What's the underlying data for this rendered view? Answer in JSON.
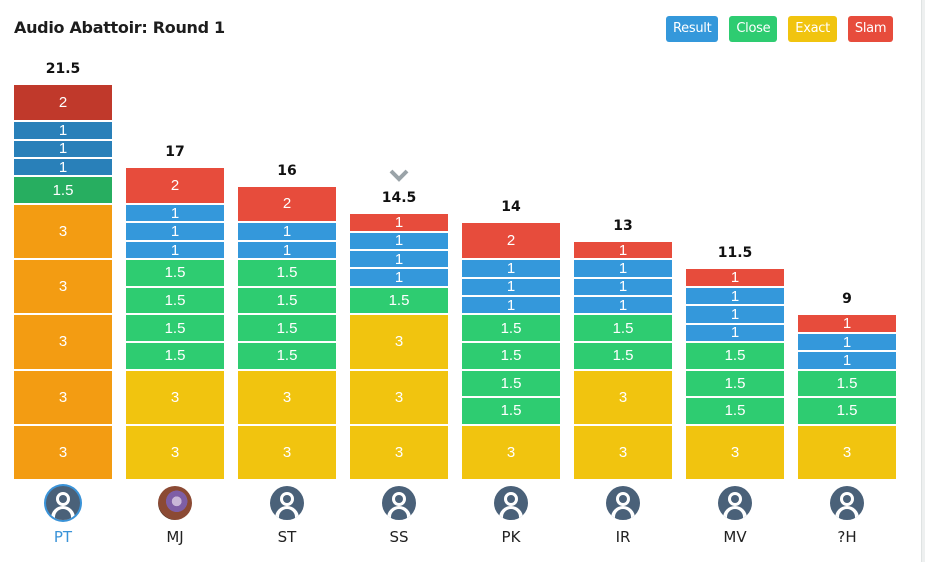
{
  "title": "Audio Abattoir: Round 1",
  "legend": [
    {
      "label": "Result",
      "color": "#3498db"
    },
    {
      "label": "Close",
      "color": "#2ecc71"
    },
    {
      "label": "Exact",
      "color": "#f1c40f"
    },
    {
      "label": "Slam",
      "color": "#e74c3c"
    }
  ],
  "chart_data": {
    "type": "bar",
    "stacked": true,
    "title": "Audio Abattoir: Round 1",
    "categories": [
      "PT",
      "MJ",
      "ST",
      "SS",
      "PK",
      "IR",
      "MV",
      "?H"
    ],
    "selected": "PT",
    "marker_above": "SS",
    "totals": [
      21.5,
      17,
      16,
      14.5,
      14,
      13,
      11.5,
      9
    ],
    "stacks": [
      [
        {
          "type": "Exact",
          "value": 3
        },
        {
          "type": "Exact",
          "value": 3
        },
        {
          "type": "Exact",
          "value": 3
        },
        {
          "type": "Exact",
          "value": 3
        },
        {
          "type": "Exact",
          "value": 3
        },
        {
          "type": "Close",
          "value": 1.5
        },
        {
          "type": "Result",
          "value": 1
        },
        {
          "type": "Result",
          "value": 1
        },
        {
          "type": "Result",
          "value": 1
        },
        {
          "type": "Slam",
          "value": 2
        }
      ],
      [
        {
          "type": "Exact",
          "value": 3
        },
        {
          "type": "Exact",
          "value": 3
        },
        {
          "type": "Close",
          "value": 1.5
        },
        {
          "type": "Close",
          "value": 1.5
        },
        {
          "type": "Close",
          "value": 1.5
        },
        {
          "type": "Close",
          "value": 1.5
        },
        {
          "type": "Result",
          "value": 1
        },
        {
          "type": "Result",
          "value": 1
        },
        {
          "type": "Result",
          "value": 1
        },
        {
          "type": "Slam",
          "value": 2
        }
      ],
      [
        {
          "type": "Exact",
          "value": 3
        },
        {
          "type": "Exact",
          "value": 3
        },
        {
          "type": "Close",
          "value": 1.5
        },
        {
          "type": "Close",
          "value": 1.5
        },
        {
          "type": "Close",
          "value": 1.5
        },
        {
          "type": "Close",
          "value": 1.5
        },
        {
          "type": "Result",
          "value": 1
        },
        {
          "type": "Result",
          "value": 1
        },
        {
          "type": "Slam",
          "value": 2
        }
      ],
      [
        {
          "type": "Exact",
          "value": 3
        },
        {
          "type": "Exact",
          "value": 3
        },
        {
          "type": "Exact",
          "value": 3
        },
        {
          "type": "Close",
          "value": 1.5
        },
        {
          "type": "Result",
          "value": 1
        },
        {
          "type": "Result",
          "value": 1
        },
        {
          "type": "Result",
          "value": 1
        },
        {
          "type": "Slam",
          "value": 1
        }
      ],
      [
        {
          "type": "Exact",
          "value": 3
        },
        {
          "type": "Close",
          "value": 1.5
        },
        {
          "type": "Close",
          "value": 1.5
        },
        {
          "type": "Close",
          "value": 1.5
        },
        {
          "type": "Close",
          "value": 1.5
        },
        {
          "type": "Result",
          "value": 1
        },
        {
          "type": "Result",
          "value": 1
        },
        {
          "type": "Result",
          "value": 1
        },
        {
          "type": "Slam",
          "value": 2
        }
      ],
      [
        {
          "type": "Exact",
          "value": 3
        },
        {
          "type": "Exact",
          "value": 3
        },
        {
          "type": "Close",
          "value": 1.5
        },
        {
          "type": "Close",
          "value": 1.5
        },
        {
          "type": "Result",
          "value": 1
        },
        {
          "type": "Result",
          "value": 1
        },
        {
          "type": "Result",
          "value": 1
        },
        {
          "type": "Slam",
          "value": 1
        }
      ],
      [
        {
          "type": "Exact",
          "value": 3
        },
        {
          "type": "Close",
          "value": 1.5
        },
        {
          "type": "Close",
          "value": 1.5
        },
        {
          "type": "Close",
          "value": 1.5
        },
        {
          "type": "Result",
          "value": 1
        },
        {
          "type": "Result",
          "value": 1
        },
        {
          "type": "Result",
          "value": 1
        },
        {
          "type": "Slam",
          "value": 1
        }
      ],
      [
        {
          "type": "Exact",
          "value": 3
        },
        {
          "type": "Close",
          "value": 1.5
        },
        {
          "type": "Close",
          "value": 1.5
        },
        {
          "type": "Result",
          "value": 1
        },
        {
          "type": "Result",
          "value": 1
        },
        {
          "type": "Slam",
          "value": 1
        }
      ]
    ],
    "colors": {
      "Result": "#3498db",
      "Close": "#2ecc71",
      "Exact": "#f1c40f",
      "Slam": "#e74c3c",
      "selected_Result": "#2980b9",
      "selected_Close": "#27ae60",
      "selected_Exact": "#f39c12",
      "selected_Slam": "#c0392b"
    }
  },
  "players": [
    {
      "initials": "PT",
      "avatar": "default-avatar-icon",
      "selected": true
    },
    {
      "initials": "MJ",
      "avatar": "photo-avatar",
      "selected": false
    },
    {
      "initials": "ST",
      "avatar": "default-avatar-icon",
      "selected": false
    },
    {
      "initials": "SS",
      "avatar": "default-avatar-icon",
      "selected": false
    },
    {
      "initials": "PK",
      "avatar": "default-avatar-icon",
      "selected": false
    },
    {
      "initials": "IR",
      "avatar": "default-avatar-icon",
      "selected": false
    },
    {
      "initials": "MV",
      "avatar": "default-avatar-icon",
      "selected": false
    },
    {
      "initials": "?H",
      "avatar": "default-avatar-icon",
      "selected": false
    }
  ]
}
